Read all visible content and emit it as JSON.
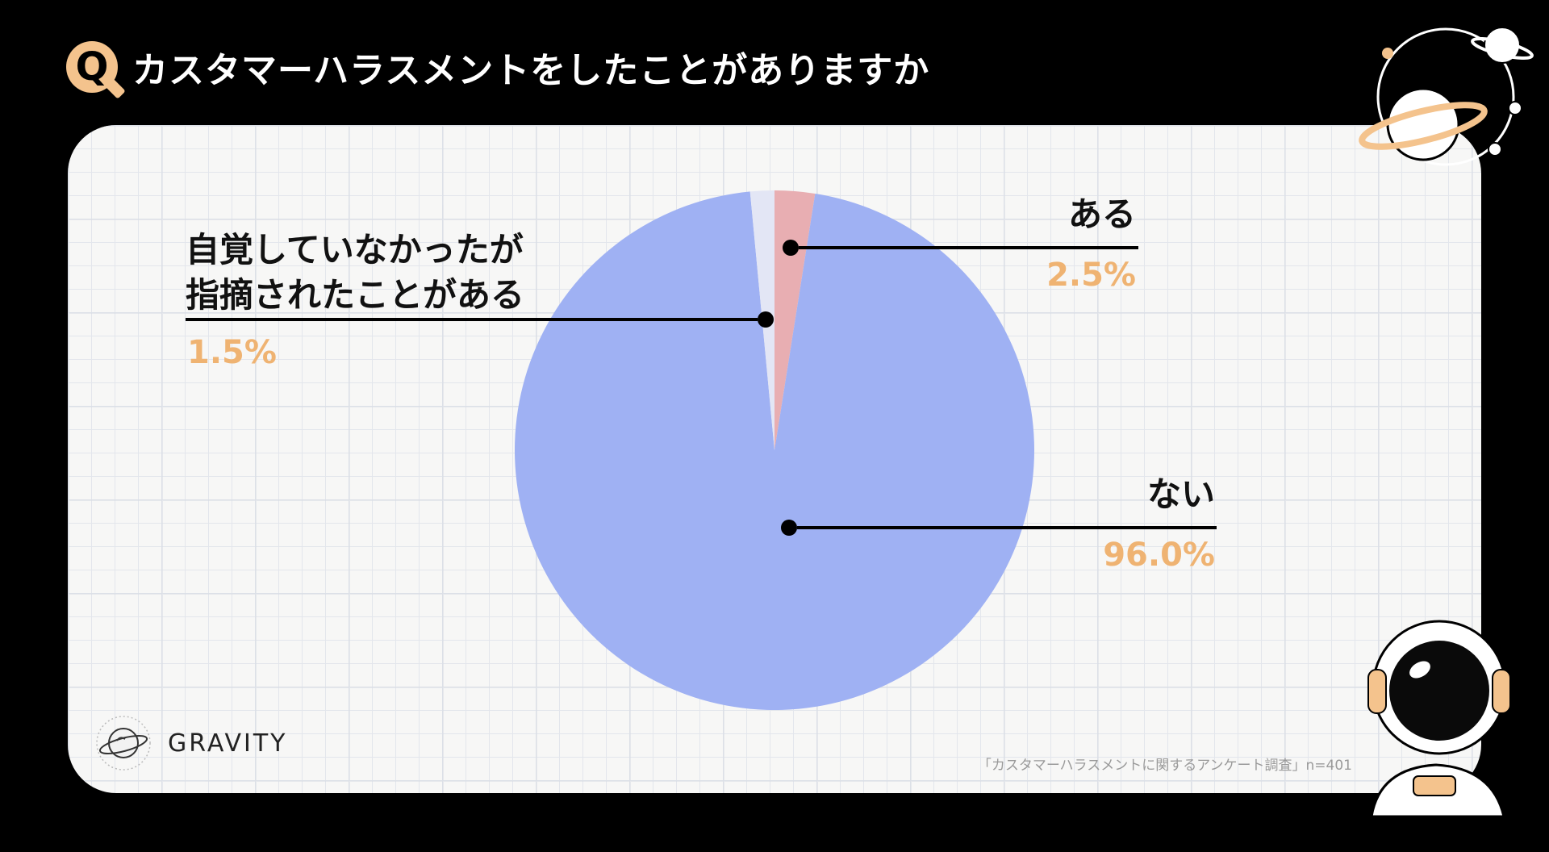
{
  "header": {
    "badge": "Q",
    "title": "カスタマーハラスメントをしたことがありますか"
  },
  "chart_data": {
    "type": "pie",
    "title": "カスタマーハラスメントをしたことがありますか",
    "slices": [
      {
        "label": "ある",
        "value": 2.5,
        "display": "2.5%",
        "color": "#e8aeb2"
      },
      {
        "label": "ない",
        "value": 96.0,
        "display": "96.0%",
        "color": "#9fb1f3"
      },
      {
        "label": "自覚していなかったが指摘されたことがある",
        "value": 1.5,
        "display": "1.5%",
        "color": "#e3e6f5"
      }
    ],
    "label_lines": {
      "other": [
        "自覚していなかったが",
        "指摘されたことがある"
      ]
    }
  },
  "brand": {
    "name": "GRAVITY"
  },
  "source": "「カスタマーハラスメントに関するアンケート調査」n=401",
  "colors": {
    "background": "#000000",
    "accent": "#f4c38d",
    "percent": "#efb372",
    "card": "#f7f7f6"
  },
  "icons": [
    "q-badge-icon",
    "planet-decoration-icon",
    "astronaut-decoration-icon",
    "gravity-logo-icon"
  ]
}
